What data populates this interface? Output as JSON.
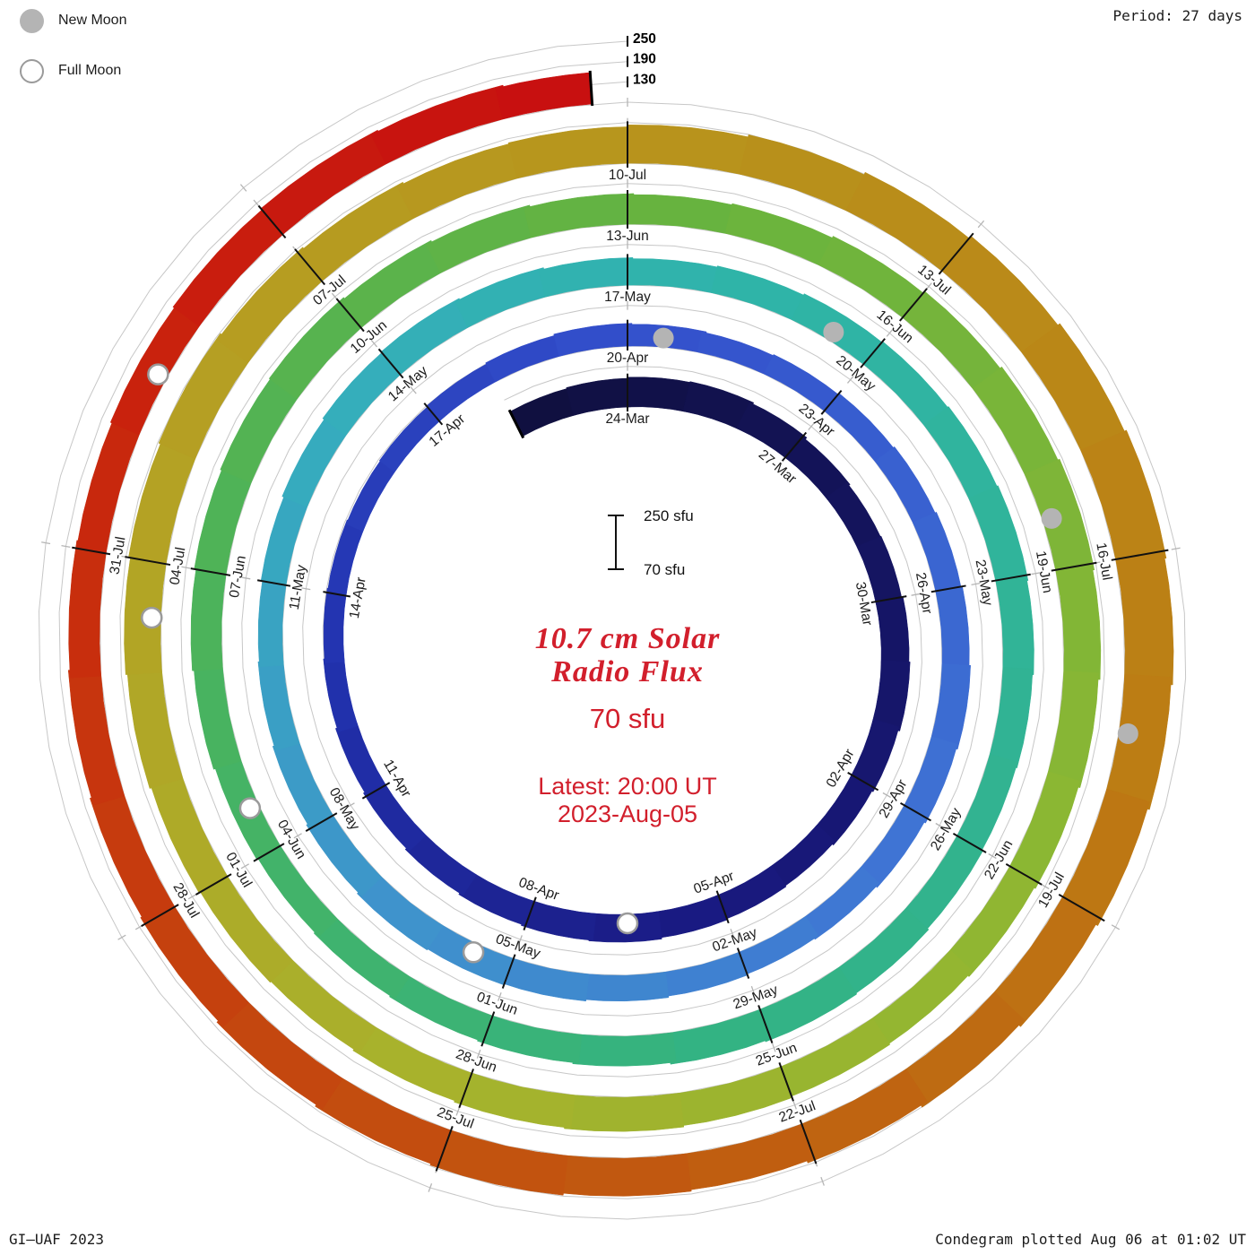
{
  "meta": {
    "credit_left": "GI–UAF 2023",
    "credit_right": "Condegram plotted Aug 06 at 01:02 UT",
    "period_label": "Period: 27 days"
  },
  "legend": {
    "new_moon": "New Moon",
    "full_moon": "Full Moon"
  },
  "center": {
    "title_line1": "10.7 cm Solar",
    "title_line2": "Radio Flux",
    "value": "70 sfu",
    "latest_line1": "Latest: 20:00 UT",
    "latest_line2": "2023-Aug-05",
    "scalebar_top": "250 sfu",
    "scalebar_bottom": "70 sfu"
  },
  "chart_data": {
    "type": "spiral_bar_condegram",
    "title": "10.7 cm Solar Radio Flux",
    "period_days": 27,
    "anchor_date": "2023-03-24",
    "start_date": "2023-03-22",
    "end_date": "2023-08-05",
    "flux_baseline_sfu": 70,
    "flux_axis_ticks": [
      130,
      190,
      250
    ],
    "date_label_start_day": 0,
    "date_label_step_days": 3,
    "date_labels": [
      "24-Mar",
      "27-Mar",
      "30-Mar",
      "02-Apr",
      "05-Apr",
      "08-Apr",
      "11-Apr",
      "14-Apr",
      "17-Apr",
      "20-Apr",
      "23-Apr",
      "26-Apr",
      "29-Apr",
      "02-May",
      "05-May",
      "08-May",
      "11-May",
      "14-May",
      "17-May",
      "20-May",
      "23-May",
      "26-May",
      "29-May",
      "01-Jun",
      "04-Jun",
      "07-Jun",
      "10-Jun",
      "13-Jun",
      "16-Jun",
      "19-Jun",
      "22-Jun",
      "25-Jun",
      "28-Jun",
      "01-Jul",
      "04-Jul",
      "07-Jul",
      "10-Jul",
      "13-Jul",
      "16-Jul",
      "19-Jul",
      "22-Jul",
      "25-Jul",
      "28-Jul",
      "31-Jul"
    ],
    "flux_sfu": [
      152,
      155,
      158,
      160,
      156,
      150,
      146,
      148,
      152,
      155,
      150,
      146,
      142,
      145,
      148,
      152,
      150,
      147,
      143,
      139,
      135,
      131,
      128,
      126,
      124,
      126,
      129,
      133,
      137,
      134,
      131,
      134,
      138,
      142,
      146,
      150,
      154,
      150,
      146,
      142,
      139,
      142,
      146,
      150,
      153,
      156,
      152,
      148,
      144,
      141,
      145,
      150,
      155,
      158,
      155,
      151,
      148,
      151,
      155,
      158,
      161,
      164,
      161,
      158,
      155,
      158,
      162,
      165,
      162,
      158,
      155,
      152,
      149,
      146,
      150,
      155,
      160,
      165,
      169,
      172,
      168,
      164,
      160,
      157,
      160,
      165,
      171,
      177,
      182,
      178,
      173,
      168,
      164,
      160,
      163,
      167,
      171,
      168,
      164,
      160,
      163,
      167,
      172,
      177,
      182,
      187,
      183,
      179,
      175,
      178,
      183,
      189,
      196,
      204,
      211,
      217,
      213,
      208,
      202,
      196,
      190,
      184,
      178,
      182,
      187,
      183,
      178,
      173,
      169,
      165,
      161,
      158,
      162,
      166,
      170,
      167,
      163
    ],
    "moons": [
      {
        "date": "2023-04-06",
        "type": "full"
      },
      {
        "date": "2023-05-05",
        "type": "full"
      },
      {
        "date": "2023-06-04",
        "type": "full"
      },
      {
        "date": "2023-07-03",
        "type": "full"
      },
      {
        "date": "2023-08-01",
        "type": "full"
      },
      {
        "date": "2023-04-20",
        "type": "new"
      },
      {
        "date": "2023-05-19",
        "type": "new"
      },
      {
        "date": "2023-06-18",
        "type": "new"
      },
      {
        "date": "2023-07-17",
        "type": "new"
      }
    ],
    "colors": {
      "new_moon": "#b4b4b4",
      "full_moon_stroke": "#9a9a9a",
      "gridline": "#c7c7c7",
      "tick": "#111111",
      "label_text": "#1c1c1c",
      "accent_red": "#d21f2c"
    },
    "colormap": [
      {
        "t": 0.0,
        "c": "#101040"
      },
      {
        "t": 0.1,
        "c": "#191980"
      },
      {
        "t": 0.16,
        "c": "#2233b0"
      },
      {
        "t": 0.21,
        "c": "#3350cc"
      },
      {
        "t": 0.28,
        "c": "#3f74d4"
      },
      {
        "t": 0.33,
        "c": "#3f93cc"
      },
      {
        "t": 0.38,
        "c": "#35aebc"
      },
      {
        "t": 0.42,
        "c": "#2fb4a8"
      },
      {
        "t": 0.5,
        "c": "#33b383"
      },
      {
        "t": 0.56,
        "c": "#4cb35a"
      },
      {
        "t": 0.61,
        "c": "#67b33f"
      },
      {
        "t": 0.67,
        "c": "#8cb733"
      },
      {
        "t": 0.72,
        "c": "#a8b22c"
      },
      {
        "t": 0.77,
        "c": "#b5a023"
      },
      {
        "t": 0.81,
        "c": "#b8931c"
      },
      {
        "t": 0.86,
        "c": "#bc7d14"
      },
      {
        "t": 0.9,
        "c": "#c05c10"
      },
      {
        "t": 0.94,
        "c": "#c63c0e"
      },
      {
        "t": 0.97,
        "c": "#c9220d"
      },
      {
        "t": 1.0,
        "c": "#c81010"
      }
    ]
  }
}
